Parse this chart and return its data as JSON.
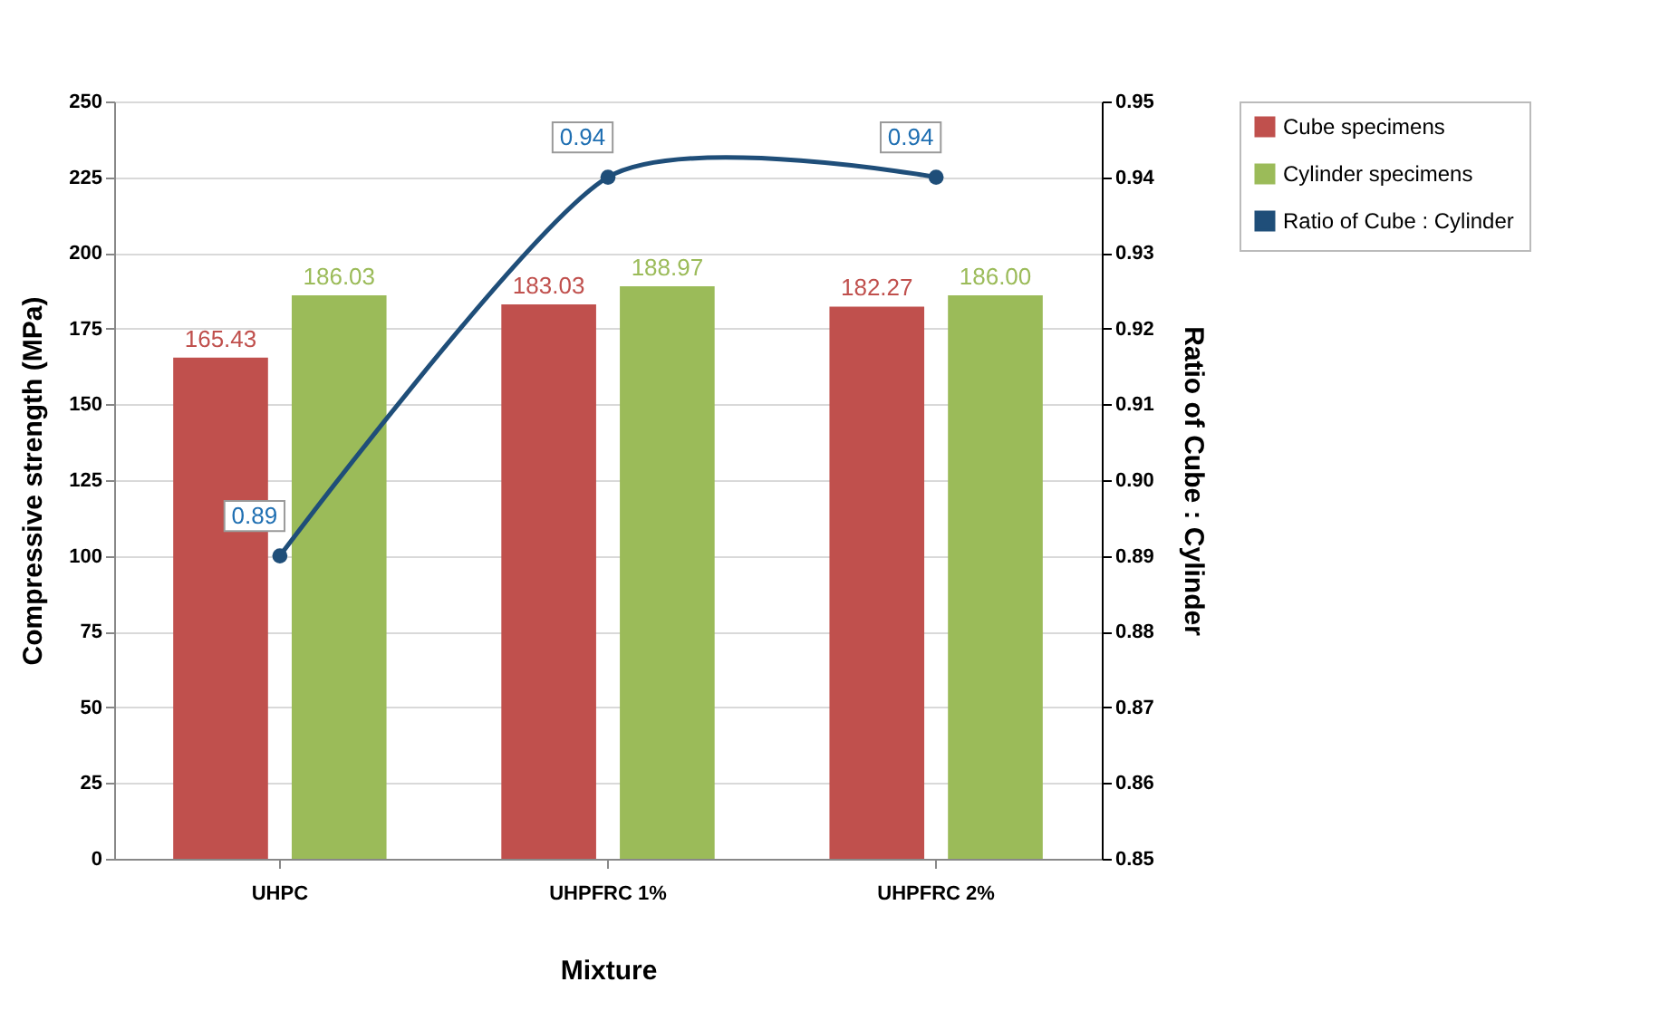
{
  "chart_data": {
    "type": "bar",
    "categories": [
      "UHPC",
      "UHPFRC 1%",
      "UHPFRC 2%"
    ],
    "xlabel": "Mixture",
    "ylabel": "Compressive strength  (MPa)",
    "y2label": "Ratio of Cube : Cylinder",
    "series": [
      {
        "name": "Cube specimens",
        "type": "bar",
        "color": "#c0504d",
        "values": [
          165.43,
          183.03,
          182.27
        ],
        "value_labels": [
          "165.43",
          "183.03",
          "182.27"
        ]
      },
      {
        "name": "Cylinder specimens",
        "type": "bar",
        "color": "#9bbb59",
        "values": [
          186.03,
          188.97,
          186.0
        ],
        "value_labels": [
          "186.03",
          "188.97",
          "186.00"
        ]
      },
      {
        "name": "Ratio of Cube : Cylinder",
        "type": "line",
        "axis": "y2",
        "color": "#1f4e79",
        "values": [
          0.89,
          0.94,
          0.94
        ],
        "value_labels": [
          "0.89",
          "0.94",
          "0.94"
        ]
      }
    ],
    "ylim": [
      0,
      250
    ],
    "yticks": [
      0,
      25,
      50,
      75,
      100,
      125,
      150,
      175,
      200,
      225,
      250
    ],
    "y2lim": [
      0.85,
      0.95
    ],
    "y2ticks": [
      "0.85",
      {
        "value": 0.86,
        "label": "0.86"
      },
      {
        "value": 0.87,
        "label": "0.87"
      },
      {
        "value": 0.88,
        "label": "0.88"
      },
      {
        "value": 0.89,
        "label": "0.89"
      },
      {
        "value": 0.9,
        "label": "0.90"
      },
      {
        "value": 0.91,
        "label": "0.91"
      },
      {
        "value": 0.92,
        "label": "0.92"
      },
      {
        "value": 0.93,
        "label": "0.93"
      },
      {
        "value": 0.94,
        "label": "0.94"
      },
      {
        "value": 0.95,
        "label": "0.95"
      }
    ],
    "grid": "y",
    "legend": "right",
    "marker": "circle",
    "line_style": "solid"
  }
}
